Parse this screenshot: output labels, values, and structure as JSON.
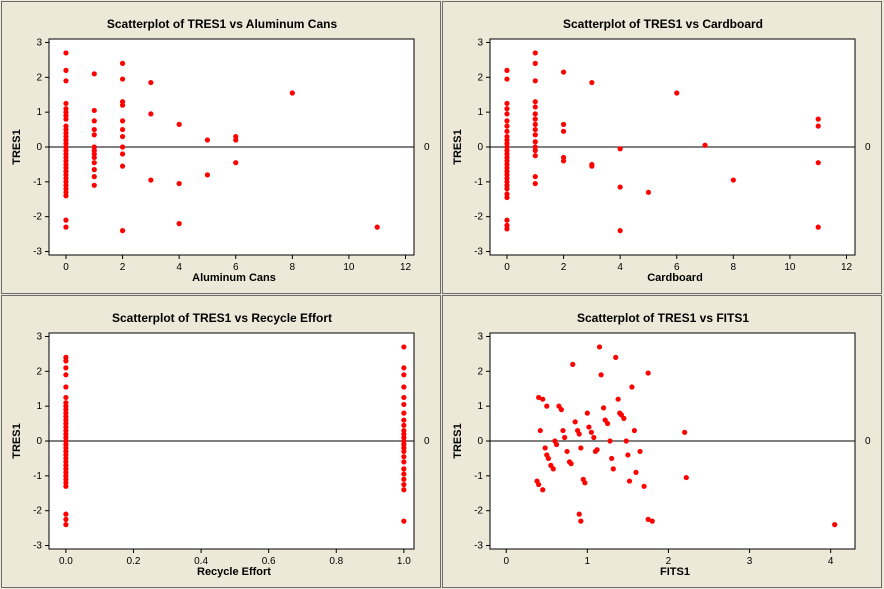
{
  "marker_color": "#ff0000",
  "chart_data": [
    {
      "type": "scatter",
      "title": "Scatterplot of TRES1 vs Aluminum Cans",
      "xlabel": "Aluminum Cans",
      "ylabel": "TRES1",
      "xlim": [
        -0.6,
        12.3
      ],
      "ylim": [
        -3.1,
        3.1
      ],
      "xticks": [
        0,
        2,
        4,
        6,
        8,
        10,
        12
      ],
      "yticks": [
        3,
        2,
        1,
        0,
        -1,
        -2,
        -3
      ],
      "ref_line": {
        "y": 0,
        "label": "0"
      },
      "points": [
        [
          0,
          2.7
        ],
        [
          0,
          2.2
        ],
        [
          0,
          1.9
        ],
        [
          0,
          1.25
        ],
        [
          0,
          1.1
        ],
        [
          0,
          1.0
        ],
        [
          0,
          0.9
        ],
        [
          0,
          0.8
        ],
        [
          0,
          0.6
        ],
        [
          0,
          0.5
        ],
        [
          0,
          0.4
        ],
        [
          0,
          0.3
        ],
        [
          0,
          0.2
        ],
        [
          0,
          0.1
        ],
        [
          0,
          0.0
        ],
        [
          0,
          -0.1
        ],
        [
          0,
          -0.2
        ],
        [
          0,
          -0.3
        ],
        [
          0,
          -0.4
        ],
        [
          0,
          -0.5
        ],
        [
          0,
          -0.6
        ],
        [
          0,
          -0.7
        ],
        [
          0,
          -0.8
        ],
        [
          0,
          -0.9
        ],
        [
          0,
          -1.0
        ],
        [
          0,
          -1.1
        ],
        [
          0,
          -1.2
        ],
        [
          0,
          -1.3
        ],
        [
          0,
          -1.4
        ],
        [
          0,
          -2.1
        ],
        [
          0,
          -2.3
        ],
        [
          1,
          2.1
        ],
        [
          1,
          1.05
        ],
        [
          1,
          0.75
        ],
        [
          1,
          0.5
        ],
        [
          1,
          0.35
        ],
        [
          1,
          0.0
        ],
        [
          1,
          -0.1
        ],
        [
          1,
          -0.2
        ],
        [
          1,
          -0.3
        ],
        [
          1,
          -0.45
        ],
        [
          1,
          -0.65
        ],
        [
          1,
          -0.85
        ],
        [
          1,
          -1.1
        ],
        [
          2,
          2.4
        ],
        [
          2,
          1.95
        ],
        [
          2,
          1.3
        ],
        [
          2,
          1.2
        ],
        [
          2,
          0.75
        ],
        [
          2,
          0.5
        ],
        [
          2,
          0.3
        ],
        [
          2,
          0.0
        ],
        [
          2,
          -0.2
        ],
        [
          2,
          -0.55
        ],
        [
          2,
          -2.4
        ],
        [
          3,
          1.85
        ],
        [
          3,
          0.95
        ],
        [
          3,
          -0.95
        ],
        [
          4,
          0.65
        ],
        [
          4,
          -1.05
        ],
        [
          4,
          -2.2
        ],
        [
          5,
          0.2
        ],
        [
          5,
          -0.8
        ],
        [
          6,
          0.3
        ],
        [
          6,
          0.2
        ],
        [
          6,
          -0.45
        ],
        [
          8,
          1.55
        ],
        [
          11,
          -2.3
        ]
      ]
    },
    {
      "type": "scatter",
      "title": "Scatterplot of TRES1 vs Cardboard",
      "xlabel": "Cardboard",
      "ylabel": "TRES1",
      "xlim": [
        -0.6,
        12.3
      ],
      "ylim": [
        -3.1,
        3.1
      ],
      "xticks": [
        0,
        2,
        4,
        6,
        8,
        10,
        12
      ],
      "yticks": [
        3,
        2,
        1,
        0,
        -1,
        -2,
        -3
      ],
      "ref_line": {
        "y": 0,
        "label": "0"
      },
      "points": [
        [
          0,
          2.2
        ],
        [
          0,
          1.95
        ],
        [
          0,
          1.25
        ],
        [
          0,
          1.1
        ],
        [
          0,
          0.95
        ],
        [
          0,
          0.75
        ],
        [
          0,
          0.6
        ],
        [
          0,
          0.45
        ],
        [
          0,
          0.3
        ],
        [
          0,
          0.2
        ],
        [
          0,
          0.1
        ],
        [
          0,
          0.0
        ],
        [
          0,
          -0.1
        ],
        [
          0,
          -0.2
        ],
        [
          0,
          -0.3
        ],
        [
          0,
          -0.4
        ],
        [
          0,
          -0.5
        ],
        [
          0,
          -0.6
        ],
        [
          0,
          -0.7
        ],
        [
          0,
          -0.8
        ],
        [
          0,
          -0.9
        ],
        [
          0,
          -1.0
        ],
        [
          0,
          -1.1
        ],
        [
          0,
          -1.2
        ],
        [
          0,
          -1.35
        ],
        [
          0,
          -1.45
        ],
        [
          0,
          -2.1
        ],
        [
          0,
          -2.25
        ],
        [
          0,
          -2.35
        ],
        [
          1,
          2.7
        ],
        [
          1,
          2.4
        ],
        [
          1,
          1.9
        ],
        [
          1,
          1.3
        ],
        [
          1,
          1.15
        ],
        [
          1,
          0.95
        ],
        [
          1,
          0.8
        ],
        [
          1,
          0.65
        ],
        [
          1,
          0.5
        ],
        [
          1,
          0.35
        ],
        [
          1,
          0.15
        ],
        [
          1,
          0.0
        ],
        [
          1,
          -0.1
        ],
        [
          1,
          -0.25
        ],
        [
          1,
          -0.85
        ],
        [
          1,
          -1.05
        ],
        [
          2,
          2.15
        ],
        [
          2,
          0.65
        ],
        [
          2,
          0.45
        ],
        [
          2,
          -0.3
        ],
        [
          2,
          -0.4
        ],
        [
          3,
          1.85
        ],
        [
          3,
          -0.5
        ],
        [
          3,
          -0.55
        ],
        [
          4,
          -0.05
        ],
        [
          4,
          -1.15
        ],
        [
          4,
          -2.4
        ],
        [
          5,
          -1.3
        ],
        [
          6,
          1.55
        ],
        [
          7,
          0.05
        ],
        [
          8,
          -0.95
        ],
        [
          11,
          0.8
        ],
        [
          11,
          0.6
        ],
        [
          11,
          -0.45
        ],
        [
          11,
          -2.3
        ]
      ]
    },
    {
      "type": "scatter",
      "title": "Scatterplot of TRES1 vs Recycle Effort",
      "xlabel": "Recycle Effort",
      "ylabel": "TRES1",
      "xlim": [
        -0.05,
        1.03
      ],
      "ylim": [
        -3.1,
        3.1
      ],
      "xticks": [
        0.0,
        0.2,
        0.4,
        0.6,
        0.8,
        1.0
      ],
      "xtick_labels": [
        "0.0",
        "0.2",
        "0.4",
        "0.6",
        "0.8",
        "1.0"
      ],
      "yticks": [
        3,
        2,
        1,
        0,
        -1,
        -2,
        -3
      ],
      "ref_line": {
        "y": 0,
        "label": "0"
      },
      "points": [
        [
          0,
          2.4
        ],
        [
          0,
          2.3
        ],
        [
          0,
          2.1
        ],
        [
          0,
          1.9
        ],
        [
          0,
          1.55
        ],
        [
          0,
          1.25
        ],
        [
          0,
          1.1
        ],
        [
          0,
          1.0
        ],
        [
          0,
          0.9
        ],
        [
          0,
          0.8
        ],
        [
          0,
          0.7
        ],
        [
          0,
          0.6
        ],
        [
          0,
          0.5
        ],
        [
          0,
          0.4
        ],
        [
          0,
          0.3
        ],
        [
          0,
          0.2
        ],
        [
          0,
          0.1
        ],
        [
          0,
          0.0
        ],
        [
          0,
          -0.1
        ],
        [
          0,
          -0.2
        ],
        [
          0,
          -0.3
        ],
        [
          0,
          -0.4
        ],
        [
          0,
          -0.5
        ],
        [
          0,
          -0.6
        ],
        [
          0,
          -0.7
        ],
        [
          0,
          -0.8
        ],
        [
          0,
          -0.9
        ],
        [
          0,
          -1.0
        ],
        [
          0,
          -1.1
        ],
        [
          0,
          -1.2
        ],
        [
          0,
          -1.3
        ],
        [
          0,
          -2.1
        ],
        [
          0,
          -2.25
        ],
        [
          0,
          -2.4
        ],
        [
          1,
          2.7
        ],
        [
          1,
          2.1
        ],
        [
          1,
          1.9
        ],
        [
          1,
          1.55
        ],
        [
          1,
          1.25
        ],
        [
          1,
          1.05
        ],
        [
          1,
          0.8
        ],
        [
          1,
          0.6
        ],
        [
          1,
          0.45
        ],
        [
          1,
          0.3
        ],
        [
          1,
          0.2
        ],
        [
          1,
          0.1
        ],
        [
          1,
          0.0
        ],
        [
          1,
          -0.1
        ],
        [
          1,
          -0.2
        ],
        [
          1,
          -0.3
        ],
        [
          1,
          -0.45
        ],
        [
          1,
          -0.6
        ],
        [
          1,
          -0.8
        ],
        [
          1,
          -0.95
        ],
        [
          1,
          -1.1
        ],
        [
          1,
          -1.25
        ],
        [
          1,
          -1.4
        ],
        [
          1,
          -2.3
        ]
      ]
    },
    {
      "type": "scatter",
      "title": "Scatterplot of TRES1 vs FITS1",
      "xlabel": "FITS1",
      "ylabel": "TRES1",
      "xlim": [
        -0.2,
        4.3
      ],
      "ylim": [
        -3.1,
        3.1
      ],
      "xticks": [
        0,
        1,
        2,
        3,
        4
      ],
      "yticks": [
        3,
        2,
        1,
        0,
        -1,
        -2,
        -3
      ],
      "ref_line": {
        "y": 0,
        "label": "0"
      },
      "points": [
        [
          0.4,
          1.25
        ],
        [
          0.45,
          1.2
        ],
        [
          0.5,
          1.0
        ],
        [
          0.42,
          0.3
        ],
        [
          0.38,
          -1.15
        ],
        [
          0.4,
          -1.25
        ],
        [
          0.45,
          -1.4
        ],
        [
          0.48,
          -0.2
        ],
        [
          0.5,
          -0.4
        ],
        [
          0.52,
          -0.5
        ],
        [
          0.55,
          -0.7
        ],
        [
          0.58,
          -0.8
        ],
        [
          0.6,
          0.0
        ],
        [
          0.62,
          -0.1
        ],
        [
          0.65,
          1.0
        ],
        [
          0.68,
          0.9
        ],
        [
          0.7,
          0.3
        ],
        [
          0.72,
          0.1
        ],
        [
          0.75,
          -0.3
        ],
        [
          0.78,
          -0.6
        ],
        [
          0.8,
          -0.65
        ],
        [
          0.82,
          2.2
        ],
        [
          0.85,
          0.55
        ],
        [
          0.88,
          0.3
        ],
        [
          0.9,
          0.2
        ],
        [
          0.92,
          -0.2
        ],
        [
          0.95,
          -1.1
        ],
        [
          0.97,
          -1.2
        ],
        [
          1.0,
          0.8
        ],
        [
          1.02,
          0.4
        ],
        [
          1.05,
          0.25
        ],
        [
          1.08,
          0.1
        ],
        [
          1.1,
          -0.3
        ],
        [
          1.12,
          -0.25
        ],
        [
          1.15,
          2.7
        ],
        [
          1.17,
          1.9
        ],
        [
          1.2,
          0.95
        ],
        [
          1.22,
          0.6
        ],
        [
          1.25,
          0.5
        ],
        [
          1.28,
          0.0
        ],
        [
          1.3,
          -0.5
        ],
        [
          1.32,
          -0.8
        ],
        [
          1.35,
          2.4
        ],
        [
          1.38,
          1.2
        ],
        [
          1.4,
          0.8
        ],
        [
          1.42,
          0.75
        ],
        [
          1.45,
          0.65
        ],
        [
          1.48,
          0.0
        ],
        [
          1.5,
          -0.4
        ],
        [
          1.52,
          -1.15
        ],
        [
          1.55,
          1.55
        ],
        [
          1.58,
          0.3
        ],
        [
          1.6,
          -0.9
        ],
        [
          1.65,
          -0.3
        ],
        [
          1.7,
          -1.3
        ],
        [
          1.75,
          1.95
        ],
        [
          0.9,
          -2.1
        ],
        [
          0.92,
          -2.3
        ],
        [
          1.75,
          -2.25
        ],
        [
          1.8,
          -2.3
        ],
        [
          2.2,
          0.25
        ],
        [
          2.22,
          -1.05
        ],
        [
          4.05,
          -2.4
        ]
      ]
    }
  ]
}
